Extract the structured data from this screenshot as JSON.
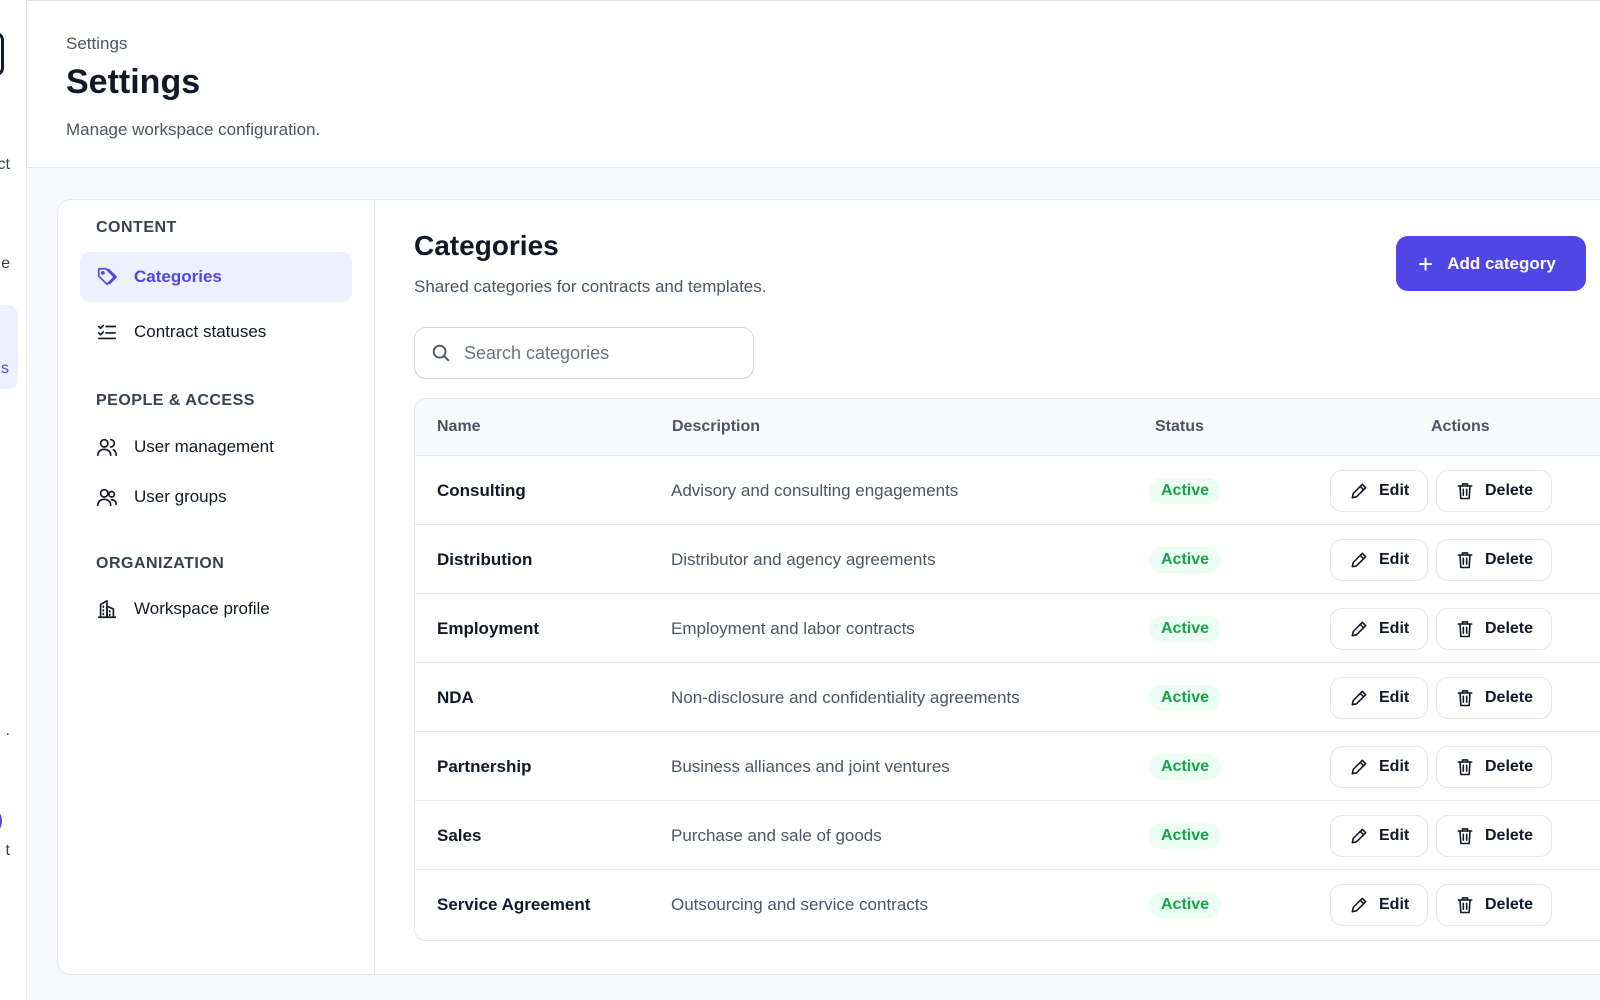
{
  "rail": {
    "frag_1": "ct",
    "frag_2": "e",
    "frag_active": "s",
    "frag_3": ".",
    "frag_4": "t"
  },
  "header": {
    "breadcrumb": "Settings",
    "title": "Settings",
    "subtitle": "Manage workspace configuration."
  },
  "nav": {
    "sections": [
      {
        "label": "CONTENT",
        "items": [
          {
            "label": "Categories",
            "icon": "tag-icon",
            "active": true
          },
          {
            "label": "Contract statuses",
            "icon": "checklist-icon",
            "active": false
          }
        ]
      },
      {
        "label": "PEOPLE & ACCESS",
        "items": [
          {
            "label": "User management",
            "icon": "user-icon",
            "active": false
          },
          {
            "label": "User groups",
            "icon": "users-icon",
            "active": false
          }
        ]
      },
      {
        "label": "ORGANIZATION",
        "items": [
          {
            "label": "Workspace profile",
            "icon": "building-icon",
            "active": false
          }
        ]
      }
    ]
  },
  "main": {
    "title": "Categories",
    "subtitle": "Shared categories for contracts and templates.",
    "add_button_label": "Add category",
    "search_placeholder": "Search categories",
    "search_value": ""
  },
  "table": {
    "columns": [
      "Name",
      "Description",
      "Status",
      "Actions"
    ],
    "edit_label": "Edit",
    "delete_label": "Delete",
    "rows": [
      {
        "name": "Consulting",
        "description": "Advisory and consulting engagements",
        "status": "Active"
      },
      {
        "name": "Distribution",
        "description": "Distributor and agency agreements",
        "status": "Active"
      },
      {
        "name": "Employment",
        "description": "Employment and labor contracts",
        "status": "Active"
      },
      {
        "name": "NDA",
        "description": "Non-disclosure and confidentiality agreements",
        "status": "Active"
      },
      {
        "name": "Partnership",
        "description": "Business alliances and joint ventures",
        "status": "Active"
      },
      {
        "name": "Sales",
        "description": "Purchase and sale of goods",
        "status": "Active"
      },
      {
        "name": "Service Agreement",
        "description": "Outsourcing and service contracts",
        "status": "Active"
      }
    ]
  },
  "colors": {
    "accent": "#4f46e5",
    "accent_soft": "#eef0ff",
    "status_active_text": "#16a34a",
    "status_active_bg": "#ecfdf3"
  }
}
